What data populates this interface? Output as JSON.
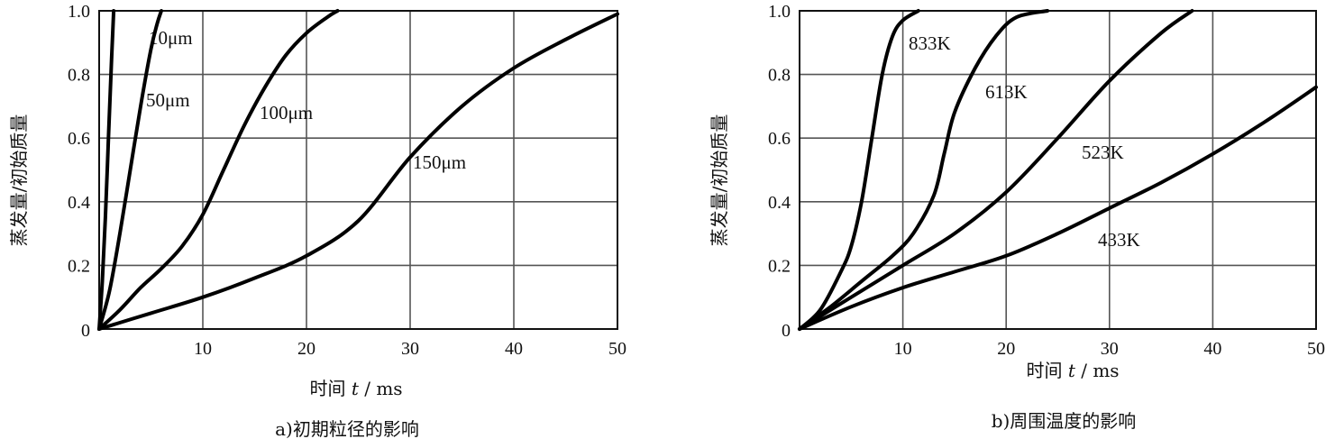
{
  "chart_data": [
    {
      "type": "line",
      "caption": "a)初期粒径的影响",
      "ylabel": "蒸发量/初始质量",
      "xlabel_prefix": "时间",
      "xlabel_var": "t",
      "xlabel_unit": "/ ms",
      "xlim": [
        0,
        50
      ],
      "ylim": [
        0,
        1.0
      ],
      "xticks": [
        "10",
        "20",
        "30",
        "40",
        "50"
      ],
      "origin_label": "0",
      "yticks": [
        "0.2",
        "0.4",
        "0.6",
        "0.8",
        "1.0"
      ],
      "grid": true,
      "series": [
        {
          "name": "10μm",
          "points": [
            [
              0,
              0
            ],
            [
              0.3,
              0.15
            ],
            [
              0.6,
              0.35
            ],
            [
              0.9,
              0.6
            ],
            [
              1.2,
              0.85
            ],
            [
              1.4,
              1.0
            ]
          ]
        },
        {
          "name": "50μm",
          "points": [
            [
              0,
              0
            ],
            [
              1,
              0.12
            ],
            [
              2,
              0.3
            ],
            [
              3,
              0.5
            ],
            [
              4,
              0.7
            ],
            [
              5,
              0.88
            ],
            [
              5.6,
              0.96
            ],
            [
              6,
              1.0
            ]
          ]
        },
        {
          "name": "100μm",
          "points": [
            [
              0,
              0
            ],
            [
              2,
              0.06
            ],
            [
              4,
              0.13
            ],
            [
              6,
              0.19
            ],
            [
              8,
              0.26
            ],
            [
              10,
              0.36
            ],
            [
              12,
              0.5
            ],
            [
              14,
              0.64
            ],
            [
              16,
              0.76
            ],
            [
              18,
              0.86
            ],
            [
              20,
              0.93
            ],
            [
              22,
              0.98
            ],
            [
              23,
              1.0
            ]
          ]
        },
        {
          "name": "150μm",
          "points": [
            [
              0,
              0
            ],
            [
              5,
              0.05
            ],
            [
              10,
              0.1
            ],
            [
              15,
              0.16
            ],
            [
              20,
              0.23
            ],
            [
              25,
              0.34
            ],
            [
              30,
              0.54
            ],
            [
              35,
              0.7
            ],
            [
              40,
              0.82
            ],
            [
              45,
              0.91
            ],
            [
              50,
              0.99
            ]
          ]
        }
      ]
    },
    {
      "type": "line",
      "caption": "b)周围温度的影响",
      "ylabel": "蒸发量/初始质量",
      "xlabel_prefix": "时间",
      "xlabel_var": "t",
      "xlabel_unit": "/ ms",
      "xlim": [
        0,
        50
      ],
      "ylim": [
        0,
        1.0
      ],
      "xticks": [
        "10",
        "20",
        "30",
        "40",
        "50"
      ],
      "origin_label": "0",
      "yticks": [
        "0.2",
        "0.4",
        "0.6",
        "0.8",
        "1.0"
      ],
      "grid": true,
      "series": [
        {
          "name": "833K",
          "points": [
            [
              0,
              0
            ],
            [
              2,
              0.06
            ],
            [
              4,
              0.18
            ],
            [
              5,
              0.26
            ],
            [
              6,
              0.4
            ],
            [
              7,
              0.6
            ],
            [
              8,
              0.8
            ],
            [
              9,
              0.92
            ],
            [
              10,
              0.97
            ],
            [
              11.5,
              1.0
            ]
          ]
        },
        {
          "name": "613K",
          "points": [
            [
              0,
              0
            ],
            [
              3,
              0.07
            ],
            [
              6,
              0.15
            ],
            [
              9,
              0.23
            ],
            [
              11,
              0.3
            ],
            [
              13,
              0.42
            ],
            [
              14,
              0.55
            ],
            [
              15,
              0.68
            ],
            [
              17,
              0.82
            ],
            [
              19,
              0.92
            ],
            [
              21,
              0.98
            ],
            [
              24,
              1.0
            ]
          ]
        },
        {
          "name": "523K",
          "points": [
            [
              0,
              0
            ],
            [
              5,
              0.1
            ],
            [
              10,
              0.2
            ],
            [
              15,
              0.3
            ],
            [
              20,
              0.43
            ],
            [
              25,
              0.6
            ],
            [
              30,
              0.78
            ],
            [
              35,
              0.93
            ],
            [
              38,
              1.0
            ]
          ]
        },
        {
          "name": "433K",
          "points": [
            [
              0,
              0
            ],
            [
              5,
              0.07
            ],
            [
              10,
              0.13
            ],
            [
              15,
              0.18
            ],
            [
              20,
              0.23
            ],
            [
              25,
              0.3
            ],
            [
              30,
              0.38
            ],
            [
              35,
              0.46
            ],
            [
              40,
              0.55
            ],
            [
              45,
              0.65
            ],
            [
              50,
              0.76
            ]
          ]
        }
      ]
    }
  ]
}
